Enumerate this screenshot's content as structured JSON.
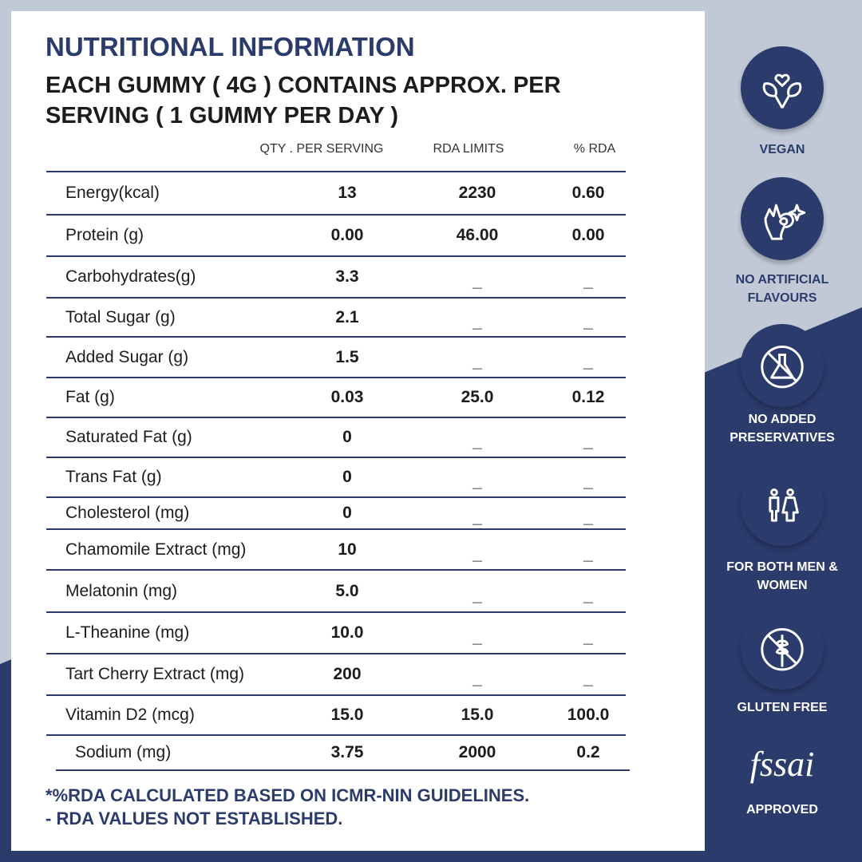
{
  "colors": {
    "navy": "#2b3b6b",
    "background": "#c1c9d7"
  },
  "title": "NUTRITIONAL INFORMATION",
  "subtitle": "EACH GUMMY ( 4G ) CONTAINS APPROX. PER SERVING ( 1 GUMMY PER DAY )",
  "columns": [
    "QTY . PER SERVING",
    "RDA LIMITS",
    "% RDA"
  ],
  "rows": [
    {
      "name": "Energy(kcal)",
      "qty": "13",
      "rda": "2230",
      "pct": "0.60"
    },
    {
      "name": "Protein (g)",
      "qty": "0.00",
      "rda": "46.00",
      "pct": "0.00"
    },
    {
      "name": "Carbohydrates(g)",
      "qty": "3.3",
      "rda": "_",
      "pct": "_"
    },
    {
      "name": "Total Sugar (g)",
      "qty": "2.1",
      "rda": "_",
      "pct": "_"
    },
    {
      "name": "Added Sugar (g)",
      "qty": "1.5",
      "rda": "_",
      "pct": "_"
    },
    {
      "name": "Fat (g)",
      "qty": "0.03",
      "rda": "25.0",
      "pct": "0.12"
    },
    {
      "name": "Saturated Fat (g)",
      "qty": "0",
      "rda": "_",
      "pct": "_"
    },
    {
      "name": "Trans Fat (g)",
      "qty": "0",
      "rda": "_",
      "pct": "_"
    },
    {
      "name": "Cholesterol (mg)",
      "qty": "0",
      "rda": "_",
      "pct": "_"
    },
    {
      "name": "Chamomile Extract (mg)",
      "qty": "10",
      "rda": "_",
      "pct": "_"
    },
    {
      "name": "Melatonin (mg)",
      "qty": "5.0",
      "rda": "_",
      "pct": "_"
    },
    {
      "name": "L-Theanine (mg)",
      "qty": "10.0",
      "rda": "_",
      "pct": "_"
    },
    {
      "name": "Tart Cherry Extract (mg)",
      "qty": "200",
      "rda": "_",
      "pct": "_"
    },
    {
      "name": "Vitamin D2 (mcg)",
      "qty": "15.0",
      "rda": "15.0",
      "pct": "100.0"
    },
    {
      "name": "Sodium (mg)",
      "qty": "3.75",
      "rda": "2000",
      "pct": "0.2"
    }
  ],
  "footnotes": [
    "*%RDA CALCULATED BASED ON ICMR-NIN GUIDELINES.",
    "- RDA VALUES NOT ESTABLISHED."
  ],
  "badges": [
    {
      "icon": "vegan-leaf-heart-icon",
      "label": "VEGAN"
    },
    {
      "icon": "ok-hand-sparkle-icon",
      "label": "NO ARTIFICIAL FLAVOURS"
    },
    {
      "icon": "no-flask-icon",
      "label": "NO ADDED PRESERVATIVES"
    },
    {
      "icon": "man-woman-icon",
      "label": "FOR BOTH MEN & WOMEN"
    },
    {
      "icon": "no-wheat-icon",
      "label": "GLUTEN FREE"
    }
  ],
  "fssai": {
    "logo": "fssai",
    "label": "APPROVED"
  }
}
